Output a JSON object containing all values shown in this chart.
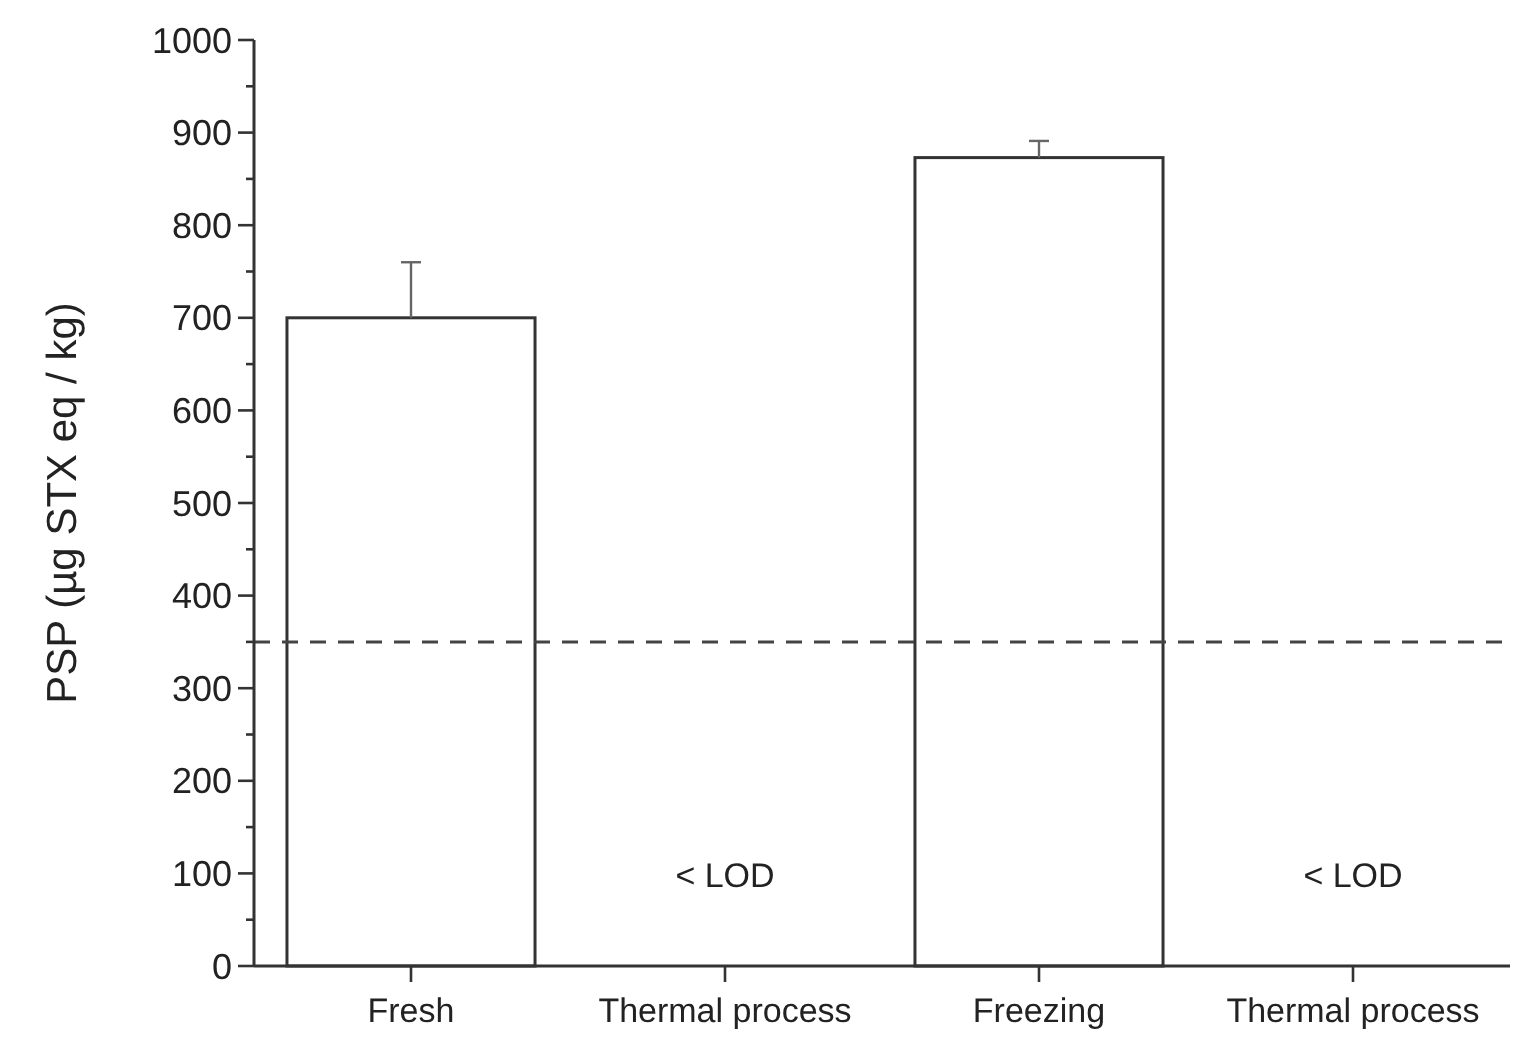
{
  "chart_data": {
    "type": "bar",
    "ylabel": "PSP (µg STX eq / kg)",
    "categories": [
      "Fresh",
      "Thermal process",
      "Freezing",
      "Thermal process"
    ],
    "values": [
      700,
      null,
      873,
      null
    ],
    "errors": [
      [
        700,
        760
      ],
      null,
      [
        873,
        891
      ],
      null
    ],
    "value_labels": [
      null,
      "< LOD",
      null,
      "< LOD"
    ],
    "color": "#ffffff",
    "ylim": [
      0,
      1000
    ],
    "yticks": [
      0,
      {
        "value": 50,
        "label": null
      },
      100,
      {
        "value": 150,
        "label": null
      },
      200,
      {
        "value": 250,
        "label": null
      },
      300,
      {
        "value": 350,
        "label": null
      },
      400,
      {
        "value": 450,
        "label": null
      },
      500,
      {
        "value": 550,
        "label": null
      },
      600,
      {
        "value": 650,
        "label": null
      },
      700,
      {
        "value": 750,
        "label": null
      },
      800,
      {
        "value": 850,
        "label": null
      },
      900,
      {
        "value": 950,
        "label": null
      },
      1000
    ],
    "ref_lines": [
      {
        "axis": "y",
        "value": 350,
        "line_style": "dashed",
        "color": "#444444"
      }
    ],
    "grid": false
  }
}
